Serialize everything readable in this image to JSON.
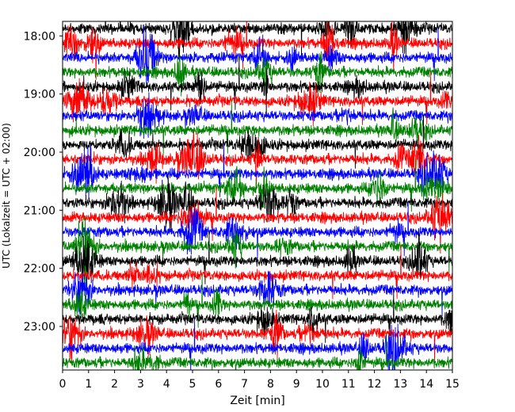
{
  "chart_data": {
    "type": "line",
    "title": "",
    "xlabel": "Zeit  [min]",
    "ylabel": "UTC (Lokalzeit = UTC + 02:00)",
    "xlim": [
      0,
      15
    ],
    "x_ticks": [
      "0",
      "1",
      "2",
      "3",
      "4",
      "5",
      "6",
      "7",
      "8",
      "9",
      "10",
      "11",
      "12",
      "13",
      "14",
      "15"
    ],
    "y_ticks": [
      "18:00",
      "19:00",
      "20:00",
      "21:00",
      "22:00",
      "23:00"
    ],
    "y_start": "17:45",
    "y_end": "23:45",
    "row_interval_min": 15,
    "trace_colors": [
      "#000000",
      "#ff0000",
      "#0000ff",
      "#008000"
    ],
    "grid": false,
    "legend": "none",
    "series": [
      {
        "start": "17:45",
        "color": "#000000"
      },
      {
        "start": "18:00",
        "color": "#ff0000"
      },
      {
        "start": "18:15",
        "color": "#0000ff"
      },
      {
        "start": "18:30",
        "color": "#008000"
      },
      {
        "start": "18:45",
        "color": "#000000"
      },
      {
        "start": "19:00",
        "color": "#ff0000"
      },
      {
        "start": "19:15",
        "color": "#0000ff"
      },
      {
        "start": "19:30",
        "color": "#008000"
      },
      {
        "start": "19:45",
        "color": "#000000"
      },
      {
        "start": "20:00",
        "color": "#ff0000"
      },
      {
        "start": "20:15",
        "color": "#0000ff"
      },
      {
        "start": "20:30",
        "color": "#008000"
      },
      {
        "start": "20:45",
        "color": "#000000"
      },
      {
        "start": "21:00",
        "color": "#ff0000"
      },
      {
        "start": "21:15",
        "color": "#0000ff"
      },
      {
        "start": "21:30",
        "color": "#008000"
      },
      {
        "start": "21:45",
        "color": "#000000"
      },
      {
        "start": "22:00",
        "color": "#ff0000"
      },
      {
        "start": "22:15",
        "color": "#0000ff"
      },
      {
        "start": "22:30",
        "color": "#008000"
      },
      {
        "start": "22:45",
        "color": "#000000"
      },
      {
        "start": "23:00",
        "color": "#ff0000"
      },
      {
        "start": "23:15",
        "color": "#0000ff"
      },
      {
        "start": "23:30",
        "color": "#008000"
      }
    ]
  }
}
